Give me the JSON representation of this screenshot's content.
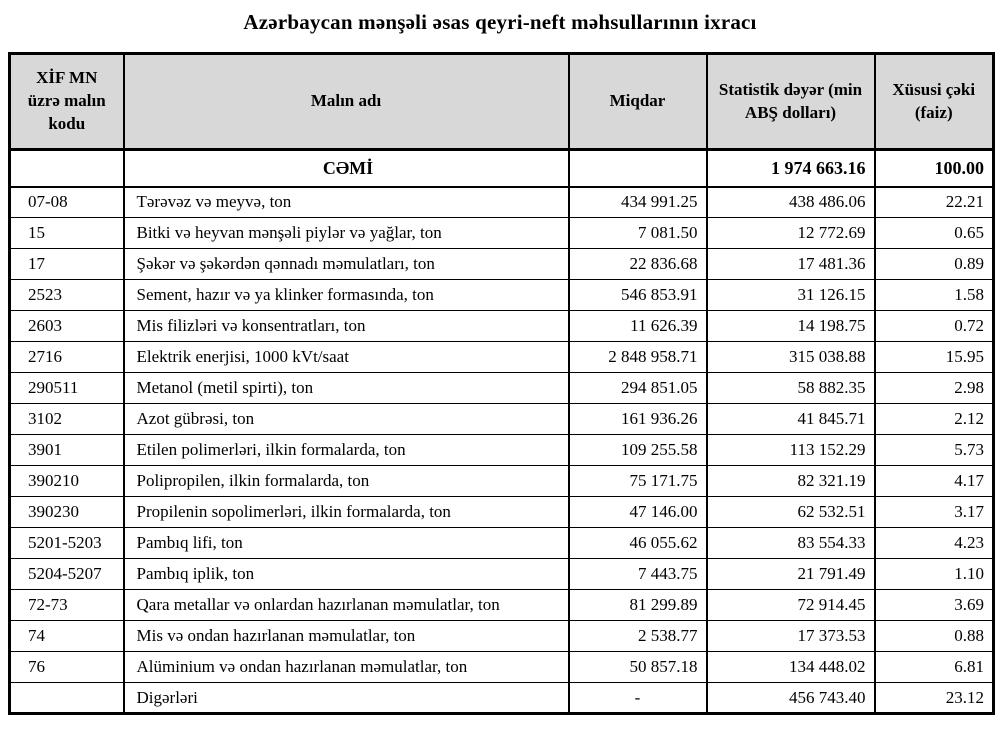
{
  "title": "Azərbaycan mənşəli əsas qeyri-neft məhsullarının ixracı",
  "table": {
    "headers": {
      "code": "XİF MN üzrə malın kodu",
      "name": "Malın adı",
      "quantity": "Miqdar",
      "value": "Statistik dəyər (min ABŞ dolları)",
      "share": "Xüsusi çəki (faiz)"
    },
    "total_row": {
      "code": "",
      "name": "CƏMİ",
      "quantity": "",
      "value": "1 974 663.16",
      "share": "100.00"
    },
    "rows": [
      {
        "code": "07-08",
        "name": "Tərəvəz və meyvə, ton",
        "quantity": "434 991.25",
        "value": "438 486.06",
        "share": "22.21"
      },
      {
        "code": "15",
        "name": "Bitki və heyvan mənşəli piylər və yağlar, ton",
        "quantity": "7 081.50",
        "value": "12 772.69",
        "share": "0.65"
      },
      {
        "code": "17",
        "name": "Şəkər və şəkərdən qənnadı məmulatları, ton",
        "quantity": "22 836.68",
        "value": "17 481.36",
        "share": "0.89"
      },
      {
        "code": "2523",
        "name": "Sement, hazır və ya klinker formasında, ton",
        "quantity": "546 853.91",
        "value": "31 126.15",
        "share": "1.58"
      },
      {
        "code": "2603",
        "name": "Mis filizləri və konsentratları, ton",
        "quantity": "11 626.39",
        "value": "14 198.75",
        "share": "0.72"
      },
      {
        "code": "2716",
        "name": "Elektrik enerjisi, 1000 kVt/saat",
        "quantity": "2 848 958.71",
        "value": "315 038.88",
        "share": "15.95"
      },
      {
        "code": "290511",
        "name": "Metanol (metil spirti), ton",
        "quantity": "294 851.05",
        "value": "58 882.35",
        "share": "2.98"
      },
      {
        "code": "3102",
        "name": "Azot gübrəsi, ton",
        "quantity": "161 936.26",
        "value": "41 845.71",
        "share": "2.12"
      },
      {
        "code": "3901",
        "name": "Etilen polimerləri, ilkin formalarda, ton",
        "quantity": "109 255.58",
        "value": "113 152.29",
        "share": "5.73"
      },
      {
        "code": "390210",
        "name": "Polipropilen, ilkin formalarda, ton",
        "quantity": "75 171.75",
        "value": "82 321.19",
        "share": "4.17"
      },
      {
        "code": "390230",
        "name": "Propilenin sopolimerləri, ilkin formalarda, ton",
        "quantity": "47 146.00",
        "value": "62 532.51",
        "share": "3.17"
      },
      {
        "code": "5201-5203",
        "name": "Pambıq lifi, ton",
        "quantity": "46 055.62",
        "value": "83 554.33",
        "share": "4.23"
      },
      {
        "code": "5204-5207",
        "name": "Pambıq iplik, ton",
        "quantity": "7 443.75",
        "value": "21 791.49",
        "share": "1.10"
      },
      {
        "code": "72-73",
        "name": "Qara metallar və onlardan hazırlanan məmulatlar, ton",
        "quantity": "81 299.89",
        "value": "72 914.45",
        "share": "3.69"
      },
      {
        "code": "74",
        "name": "Mis və ondan hazırlanan məmulatlar, ton",
        "quantity": "2 538.77",
        "value": "17 373.53",
        "share": "0.88"
      },
      {
        "code": "76",
        "name": "Alüminium və ondan hazırlanan məmulatlar, ton",
        "quantity": "50 857.18",
        "value": "134 448.02",
        "share": "6.81"
      },
      {
        "code": "",
        "name": "Digərləri",
        "quantity": "-",
        "value": "456 743.40",
        "share": "23.12"
      }
    ]
  }
}
